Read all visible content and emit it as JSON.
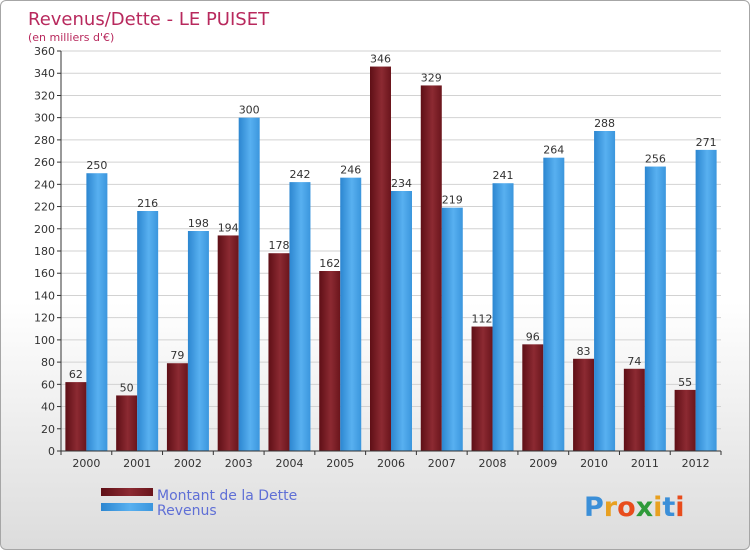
{
  "chart_data": {
    "type": "bar",
    "title": "Revenus/Dette - LE PUISET",
    "subtitle": "(en milliers d'€)",
    "categories": [
      "2000",
      "2001",
      "2002",
      "2003",
      "2004",
      "2005",
      "2006",
      "2007",
      "2008",
      "2009",
      "2010",
      "2011",
      "2012"
    ],
    "series": [
      {
        "name": "Montant de la Dette",
        "values": [
          62,
          50,
          79,
          194,
          178,
          162,
          346,
          329,
          112,
          96,
          83,
          74,
          55
        ],
        "color": "#7a1d24"
      },
      {
        "name": "Revenus",
        "values": [
          250,
          216,
          198,
          300,
          242,
          246,
          234,
          219,
          241,
          264,
          288,
          256,
          271
        ],
        "color": "#3f9ee6"
      }
    ],
    "ylim": [
      0,
      360
    ],
    "yticks": [
      0,
      20,
      40,
      60,
      80,
      100,
      120,
      140,
      160,
      180,
      200,
      220,
      240,
      260,
      280,
      300,
      320,
      340,
      360
    ],
    "ytick_labels": [
      "0",
      "20",
      "40",
      "60",
      "80",
      "100",
      "120",
      "140",
      "160",
      "180",
      "200",
      "220",
      "240",
      "260",
      "280",
      "300",
      "320",
      "340",
      "360"
    ],
    "grid": true,
    "legend_position": "bottom-left"
  },
  "logo": {
    "letters": [
      "P",
      "r",
      "o",
      "x",
      "i",
      "t",
      "i"
    ],
    "colors": [
      "#3b8fd8",
      "#e8a020",
      "#e84c1c",
      "#2f9a3a",
      "#e8a020",
      "#3b8fd8",
      "#e84c1c"
    ]
  }
}
